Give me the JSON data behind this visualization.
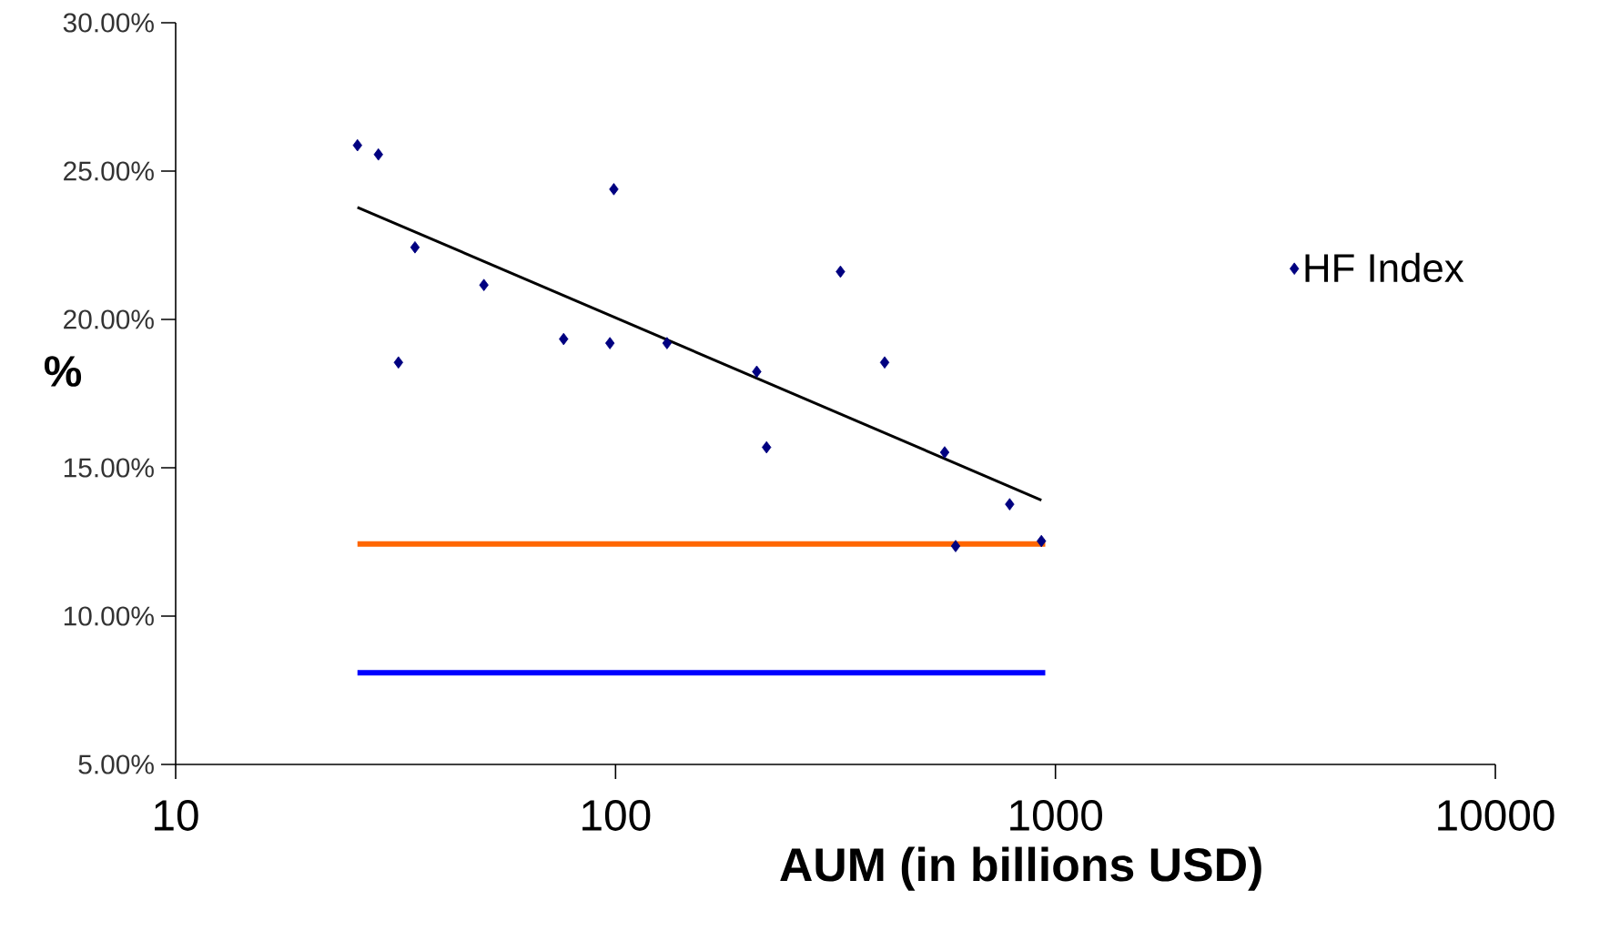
{
  "chart_data": {
    "type": "scatter",
    "xlabel": "AUM (in billions USD)",
    "ylabel": "%",
    "log": "x",
    "grid": false,
    "legend": "right",
    "xlim": [
      10,
      10000
    ],
    "xticks": [
      10,
      100,
      1000,
      10000
    ],
    "ylim": [
      5,
      30
    ],
    "yticks": [
      {
        "value": 5,
        "label": "5.00%"
      },
      {
        "value": 10,
        "label": "10.00%"
      },
      {
        "value": 15,
        "label": "15.00%"
      },
      {
        "value": 20,
        "label": "20.00%"
      },
      {
        "value": 25,
        "label": "25.00%"
      },
      {
        "value": 30,
        "label": "30.00%"
      }
    ],
    "series": [
      {
        "name": "HF Index",
        "marker": "diamond",
        "color": "#000080",
        "x": [
          25.9,
          28.9,
          32.1,
          35.0,
          50.2,
          76.2,
          97.1,
          99.1,
          130.9,
          209.4,
          220.4,
          324.5,
          409,
          560,
          593,
          787,
          929
        ],
        "values": [
          25.87,
          25.56,
          18.55,
          22.43,
          21.16,
          19.34,
          19.2,
          24.39,
          19.2,
          18.24,
          15.69,
          21.61,
          18.55,
          15.52,
          12.36,
          13.77,
          12.53
        ]
      },
      {
        "type": "line",
        "color": "#000000",
        "x": [
          25.9,
          929
        ],
        "values": [
          23.78,
          13.91
        ]
      },
      {
        "type": "line",
        "color": "#ff6600",
        "x": [
          25.9,
          948
        ],
        "values": [
          12.43,
          12.43
        ]
      },
      {
        "type": "line",
        "color": "#0000ff",
        "x": [
          25.9,
          948
        ],
        "values": [
          8.09,
          8.09
        ]
      }
    ]
  }
}
